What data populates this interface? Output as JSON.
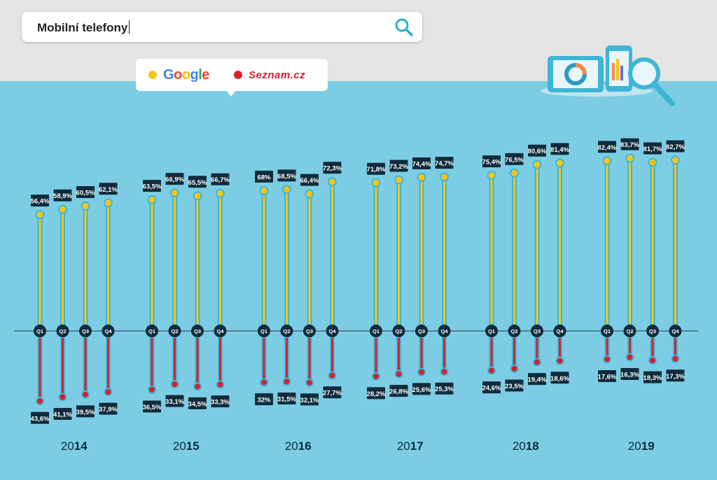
{
  "search": {
    "query": "Mobilní telefony"
  },
  "legend": {
    "google": {
      "label": "Google",
      "color": "#f5c518"
    },
    "seznam": {
      "label": "Seznam.cz",
      "color": "#d6202e"
    }
  },
  "colors": {
    "background": "#7ccde3",
    "label_bg": "#0f2b3c",
    "axis": "#1d3d4f"
  },
  "chart_data": {
    "type": "bar",
    "quarters": [
      "Q1",
      "Q2",
      "Q3",
      "Q4"
    ],
    "years": [
      {
        "year": "2014",
        "google": [
          56.4,
          58.9,
          60.5,
          62.1
        ],
        "seznam": [
          43.6,
          41.1,
          39.5,
          37.9
        ],
        "google_labels": [
          "56,4%",
          "58,9%",
          "60,5%",
          "62,1%"
        ],
        "seznam_labels": [
          "43,6%",
          "41,1%",
          "39,5%",
          "37,9%"
        ]
      },
      {
        "year": "2015",
        "google": [
          63.5,
          66.9,
          65.5,
          66.7
        ],
        "seznam": [
          36.5,
          33.1,
          34.5,
          33.3
        ],
        "google_labels": [
          "63,5%",
          "66,9%",
          "65,5%",
          "66,7%"
        ],
        "seznam_labels": [
          "36,5%",
          "33,1%",
          "34,5%",
          "33,3%"
        ]
      },
      {
        "year": "2016",
        "google": [
          68.0,
          68.5,
          66.4,
          72.3
        ],
        "seznam": [
          32.0,
          31.5,
          32.1,
          27.7
        ],
        "google_labels": [
          "68%",
          "68,5%",
          "66,4%",
          "72,3%"
        ],
        "seznam_labels": [
          "32%",
          "31,5%",
          "32,1%",
          "27,7%"
        ]
      },
      {
        "year": "2017",
        "google": [
          71.8,
          73.2,
          74.4,
          74.7
        ],
        "seznam": [
          28.2,
          26.8,
          25.6,
          25.3
        ],
        "google_labels": [
          "71,8%",
          "73,2%",
          "74,4%",
          "74,7%"
        ],
        "seznam_labels": [
          "28,2%",
          "26,8%",
          "25,6%",
          "25,3%"
        ]
      },
      {
        "year": "2018",
        "google": [
          75.4,
          76.5,
          80.6,
          81.4
        ],
        "seznam": [
          24.6,
          23.5,
          19.4,
          18.6
        ],
        "google_labels": [
          "75,4%",
          "76,5%",
          "80,6%",
          "81,4%"
        ],
        "seznam_labels": [
          "24,6%",
          "23,5%",
          "19,4%",
          "18,6%"
        ]
      },
      {
        "year": "2019",
        "google": [
          82.4,
          83.7,
          81.7,
          82.7
        ],
        "seznam": [
          17.6,
          16.3,
          18.3,
          17.3
        ],
        "google_labels": [
          "82,4%",
          "83,7%",
          "81,7%",
          "82,7%"
        ],
        "seznam_labels": [
          "17,6%",
          "16,3%",
          "18,3%",
          "17,3%"
        ]
      }
    ],
    "legend_position": "top-left",
    "grid": false
  }
}
